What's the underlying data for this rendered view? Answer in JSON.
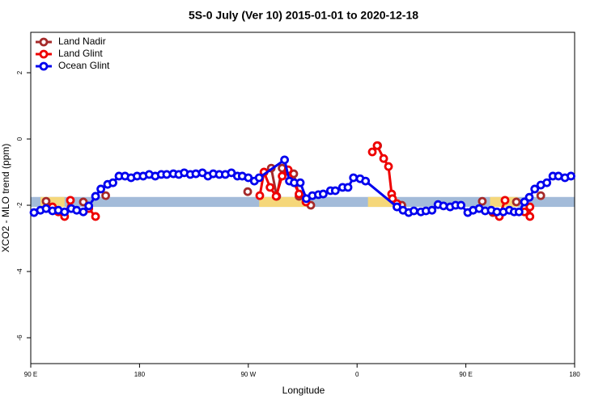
{
  "chart_data": {
    "type": "line",
    "title": "5S-0 July (Ver 10)   2015-01-01 to 2020-12-18",
    "x_label": "Longitude",
    "y_label": "XCO2 - MLO trend (ppm)",
    "xlim": [
      90,
      540
    ],
    "xticks": [
      {
        "value": 90,
        "label": "90 E"
      },
      180,
      {
        "value": 270,
        "label": "90 W"
      },
      {
        "value": 360,
        "label": "0"
      },
      {
        "value": 450,
        "label": "90 E"
      },
      {
        "value": 540,
        "label": "180"
      }
    ],
    "ylim": [
      -6.78,
      3.22
    ],
    "yticks": [
      2,
      0,
      -2,
      -4,
      -6
    ],
    "legend": "top-left",
    "band": {
      "range": [
        -2.05,
        -1.75
      ],
      "color": "#a3bbd9",
      "land_color": "#f5d77a",
      "land": [
        [
          98,
          118
        ],
        [
          279,
          319
        ],
        [
          369,
          393
        ],
        [
          470,
          493
        ]
      ]
    },
    "series": [
      {
        "name": "Land Nadir",
        "color": "#a52a2a",
        "x": [
          102.7,
          null,
          133.5,
          null,
          152,
          null,
          269.5,
          null,
          283,
          289,
          293.5,
          298,
          303,
          307.6,
          312,
          321.7,
          null,
          377,
          null,
          397,
          null,
          463.6,
          null,
          472.3,
          null,
          491.8,
          null,
          512
        ],
        "values": [
          -1.88,
          null,
          -1.9,
          null,
          -1.71,
          null,
          -1.59,
          null,
          -1.0,
          -0.88,
          -1.73,
          -0.88,
          -0.98,
          -1.05,
          -1.73,
          -2.0,
          null,
          -0.2,
          null,
          -2.0,
          null,
          -1.88,
          null,
          -2.22,
          null,
          -1.9,
          null,
          -1.71
        ]
      },
      {
        "name": "Land Glint",
        "color": "#ee0000",
        "x": [
          108,
          112.8,
          118,
          122.8,
          null,
          138,
          143.6,
          null,
          279.5,
          283,
          288,
          293,
          298,
          303,
          312,
          317.7,
          null,
          372.6,
          376.6,
          382,
          386,
          388.6,
          389.3,
          393,
          null,
          473,
          477.7,
          482.4,
          null,
          498.5,
          503,
          503
        ],
        "values": [
          -2.05,
          -2.2,
          -2.34,
          -1.85,
          null,
          -2.1,
          -2.34,
          null,
          -1.71,
          -1.0,
          -1.46,
          -1.73,
          -1.12,
          -0.93,
          -1.66,
          -1.9,
          null,
          -0.39,
          -0.2,
          -0.59,
          -0.83,
          -1.66,
          -1.8,
          -1.95,
          null,
          -2.2,
          -2.34,
          -1.85,
          null,
          -2.2,
          -2.34,
          -2.05
        ]
      },
      {
        "name": "Ocean Glint",
        "color": "#0000ee",
        "x": [
          92.7,
          98,
          102.7,
          108,
          112.8,
          118,
          123.5,
          128,
          133.5,
          138,
          143.6,
          148,
          153.6,
          158,
          163,
          168,
          173,
          178,
          183,
          188,
          193,
          198,
          202.5,
          208,
          212.5,
          217,
          222,
          226.6,
          232,
          236.6,
          241,
          246,
          251,
          256,
          261,
          265,
          270,
          275,
          279,
          300,
          304,
          308,
          313,
          318,
          323,
          328,
          332,
          338,
          342,
          348,
          352.5,
          357,
          362.5,
          367,
          393,
          398,
          402.7,
          407,
          412.8,
          417,
          422,
          427,
          431.5,
          437,
          441.5,
          446,
          451.6,
          456,
          461,
          466,
          471,
          475.7,
          481,
          486,
          490,
          494,
          498.5,
          502.5,
          507,
          512,
          517,
          522,
          526.6,
          532,
          537
        ],
        "values": [
          -2.22,
          -2.15,
          -2.1,
          -2.17,
          -2.15,
          -2.2,
          -2.1,
          -2.15,
          -2.2,
          -2.02,
          -1.73,
          -1.51,
          -1.37,
          -1.32,
          -1.12,
          -1.12,
          -1.17,
          -1.12,
          -1.12,
          -1.07,
          -1.12,
          -1.07,
          -1.07,
          -1.05,
          -1.07,
          -1.02,
          -1.07,
          -1.05,
          -1.02,
          -1.12,
          -1.05,
          -1.07,
          -1.07,
          -1.02,
          -1.12,
          -1.12,
          -1.17,
          -1.27,
          -1.17,
          -0.63,
          -1.27,
          -1.32,
          -1.32,
          -1.8,
          -1.71,
          -1.68,
          -1.66,
          -1.56,
          -1.56,
          -1.46,
          -1.46,
          -1.17,
          -1.2,
          -1.27,
          -2.05,
          -2.15,
          -2.22,
          -2.17,
          -2.2,
          -2.17,
          -2.15,
          -1.98,
          -2.02,
          -2.05,
          -2.0,
          -2.0,
          -2.22,
          -2.15,
          -2.1,
          -2.17,
          -2.15,
          -2.2,
          -2.2,
          -2.15,
          -2.2,
          -2.2,
          -1.9,
          -1.76,
          -1.51,
          -1.39,
          -1.32,
          -1.12,
          -1.12,
          -1.17,
          -1.12
        ]
      }
    ]
  }
}
